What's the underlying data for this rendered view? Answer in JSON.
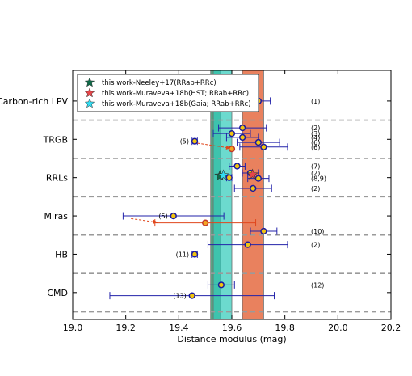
{
  "chart_data": {
    "type": "scatter",
    "xlabel": "Distance modulus (mag)",
    "xlim": [
      19.0,
      20.2
    ],
    "xticks": [
      "19.0",
      "19.2",
      "19.4",
      "19.6",
      "19.8",
      "20.0",
      "20.2"
    ],
    "categories": [
      "Carbon-rich LPV",
      "TRGB",
      "RRLs",
      "Miras",
      "HB",
      "CMD"
    ],
    "bands": [
      {
        "name": "this work-Neeley+17(RRab+RRc)",
        "center": 19.538,
        "halfwidth": 0.018,
        "color": "#1a8a5a"
      },
      {
        "name": "this work-Muraveva+18b(HST; RRab+RRc)",
        "center": 19.68,
        "halfwidth": 0.04,
        "color": "#e05020"
      },
      {
        "name": "this work-Muraveva+18b(Gaia; RRab+RRc)",
        "center": 19.565,
        "halfwidth": 0.035,
        "color": "#33ccbb"
      }
    ],
    "legend": {
      "placement": "top-left",
      "entries": [
        {
          "label": "this work-Neeley+17(RRab+RRc)",
          "color": "#0d6b48"
        },
        {
          "label": "this work-Muraveva+18b(HST; RRab+RRc)",
          "color": "#e8464a"
        },
        {
          "label": "this work-Muraveva+18b(Gaia; RRab+RRc)",
          "color": "#33ddf2"
        }
      ]
    },
    "separators_y": [
      5.5,
      4.5,
      3.5,
      2.5,
      1.5,
      0.5
    ],
    "points": [
      {
        "group": "Carbon-rich LPV",
        "y": 6.0,
        "x": 19.7,
        "err": 0.045,
        "ref": "(1)"
      },
      {
        "group": "TRGB",
        "y": 5.3,
        "x": 19.64,
        "err": 0.09,
        "ref": "(2)"
      },
      {
        "group": "TRGB",
        "y": 5.15,
        "x": 19.6,
        "err": 0.07,
        "ref": "(3)"
      },
      {
        "group": "TRGB",
        "y": 5.05,
        "x": 19.64,
        "err": 0.06,
        "ref": "(4)"
      },
      {
        "group": "TRGB",
        "y": 4.92,
        "x": 19.7,
        "err": 0.08,
        "ref": "(6)"
      },
      {
        "group": "TRGB",
        "y": 4.8,
        "x": 19.72,
        "err": 0.09,
        "ref": "(6)"
      },
      {
        "group": "TRGB",
        "y": 4.95,
        "x": 19.46,
        "err": 0.01,
        "ref": "(5)"
      },
      {
        "group": "TRGB",
        "y": 4.75,
        "x": 19.6,
        "err": 0.0,
        "ref": "",
        "highlight": true
      },
      {
        "group": "RRLs",
        "y": 4.3,
        "x": 19.62,
        "err": 0.03,
        "ref": "(7)"
      },
      {
        "group": "RRLs",
        "y": 4.12,
        "x": 19.67,
        "err": 0.03,
        "ref": "(2)"
      },
      {
        "group": "RRLs",
        "y": 3.98,
        "x": 19.7,
        "err": 0.04,
        "ref": "(8,9)"
      },
      {
        "group": "RRLs",
        "y": 3.72,
        "x": 19.68,
        "err": 0.07,
        "ref": "(2)"
      },
      {
        "group": "RRLs",
        "y": 4.0,
        "x": 19.59,
        "err": 0.01,
        "ref": ""
      },
      {
        "group": "Miras",
        "y": 3.0,
        "x": 19.38,
        "err": 0.19,
        "ref": "(5)"
      },
      {
        "group": "Miras",
        "y": 2.82,
        "x": 19.5,
        "err": 0.19,
        "ref": "",
        "highlight": true,
        "lower": 19.31
      },
      {
        "group": "Miras",
        "y": 2.6,
        "x": 19.72,
        "err": 0.05,
        "ref": "(10)"
      },
      {
        "group": "HB",
        "y": 2.25,
        "x": 19.66,
        "err": 0.15,
        "ref": "(2)"
      },
      {
        "group": "HB",
        "y": 2.0,
        "x": 19.46,
        "err": 0.01,
        "ref": "(11)"
      },
      {
        "group": "CMD",
        "y": 1.2,
        "x": 19.56,
        "err": 0.05,
        "ref": "(12)"
      },
      {
        "group": "CMD",
        "y": 0.92,
        "x": 19.45,
        "err": 0.31,
        "ref": "(13)"
      }
    ],
    "stars": [
      {
        "series": "this work-Neeley+17(RRab+RRc)",
        "x": 19.555,
        "y": 4.05,
        "color": "#0d6b48"
      },
      {
        "series": "this work-Muraveva+18b(HST; RRab+RRc)",
        "x": 19.678,
        "y": 4.08,
        "color": "#e8464a"
      },
      {
        "series": "this work-Muraveva+18b(Gaia; RRab+RRc)",
        "x": 19.568,
        "y": 4.06,
        "color": "#33ddf2"
      }
    ],
    "arrows": [
      {
        "from": [
          19.47,
          4.9
        ],
        "to": [
          19.595,
          4.77
        ]
      },
      {
        "from": [
          19.22,
          2.93
        ],
        "to": [
          19.32,
          2.83
        ]
      }
    ]
  }
}
